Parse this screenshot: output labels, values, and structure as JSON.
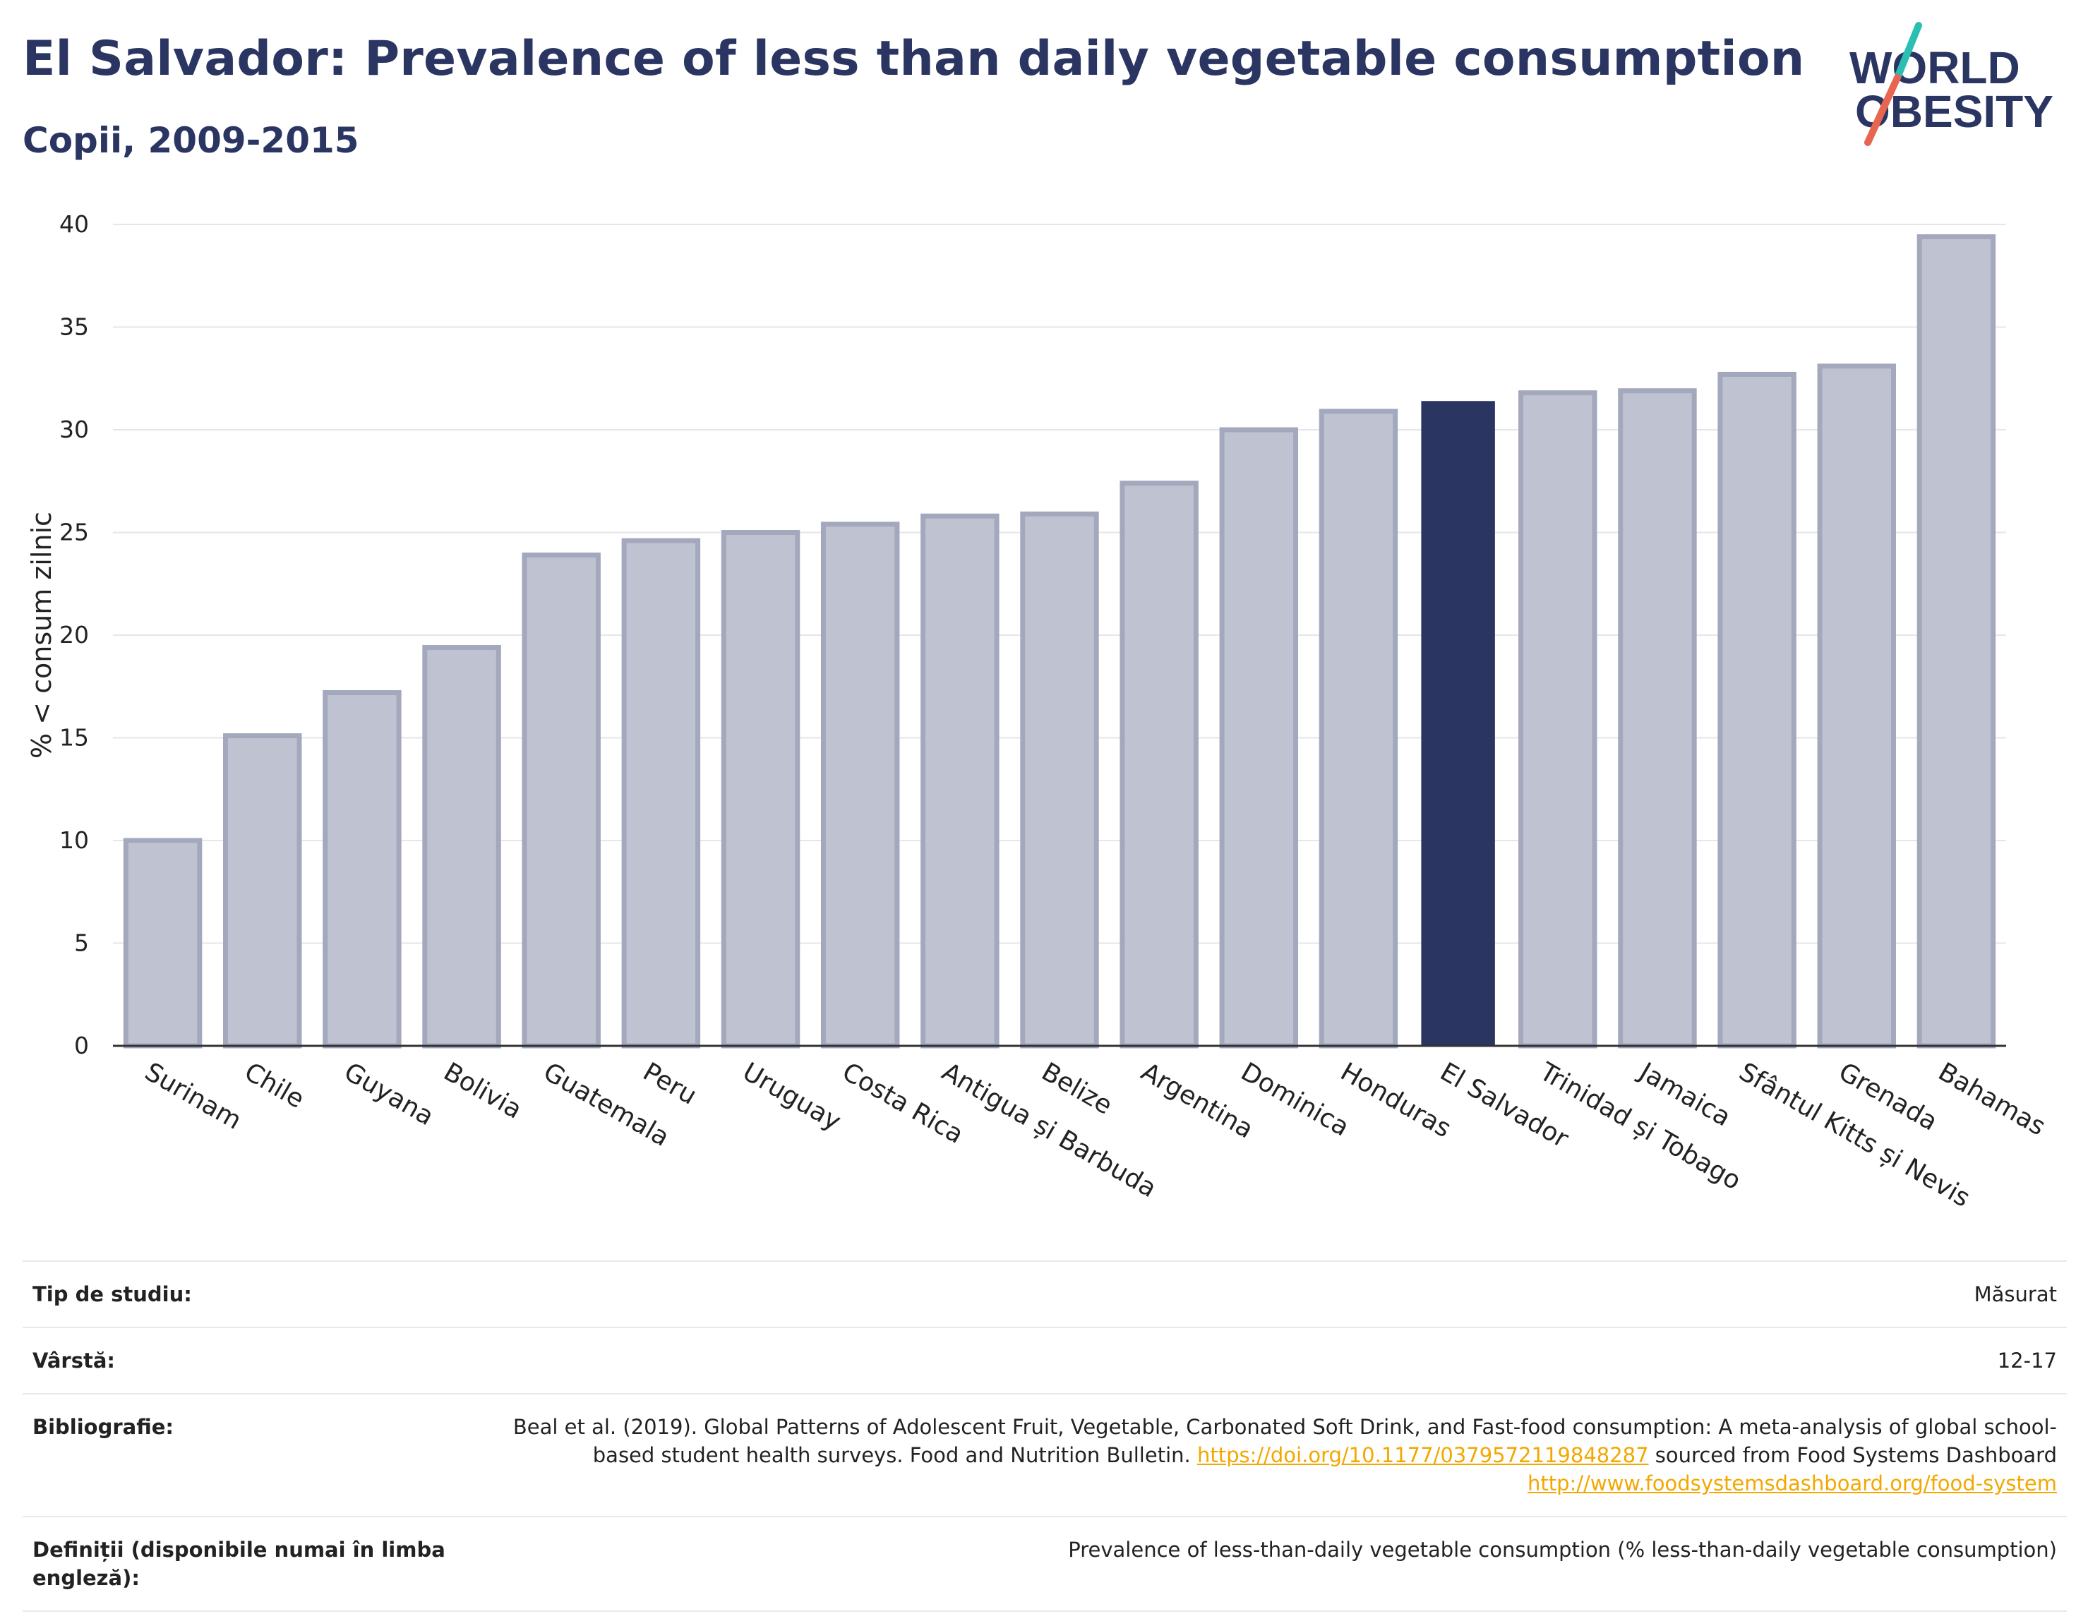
{
  "header": {
    "title": "El Salvador: Prevalence of less than daily vegetable consumption",
    "subtitle": "Copii, 2009-2015"
  },
  "logo": {
    "line1": "WORLD",
    "line2": "OBESITY",
    "colors": {
      "text": "#2a3562",
      "slash_teal": "#2bbfb3",
      "slash_red": "#e8664f"
    }
  },
  "colors": {
    "highlight": "#2a3562",
    "bar": "#bfc3d1",
    "bar_border": "#a3a8bd",
    "link": "#f2a800"
  },
  "chart_data": {
    "type": "bar",
    "ylabel": "% < consum zilnic",
    "ylim": [
      0,
      40
    ],
    "yticks": [
      0,
      5,
      10,
      15,
      20,
      25,
      30,
      35,
      40
    ],
    "grid": true,
    "highlight": "El Salvador",
    "categories": [
      "Surinam",
      "Chile",
      "Guyana",
      "Bolivia",
      "Guatemala",
      "Peru",
      "Uruguay",
      "Costa Rica",
      "Antigua și Barbuda",
      "Belize",
      "Argentina",
      "Dominica",
      "Honduras",
      "El Salvador",
      "Trinidad și Tobago",
      "Jamaica",
      "Sfântul Kitts și Nevis",
      "Grenada",
      "Bahamas"
    ],
    "values": [
      10.0,
      15.1,
      17.2,
      19.4,
      23.9,
      24.6,
      25.0,
      25.4,
      25.8,
      25.9,
      27.4,
      30.0,
      30.9,
      31.4,
      31.8,
      31.9,
      32.7,
      33.1,
      39.4
    ]
  },
  "table": {
    "study_type_label": "Tip de studiu:",
    "study_type_value": "Măsurat",
    "age_label": "Vârstă:",
    "age_value": "12-17",
    "bibliography_label": "Bibliografie:",
    "bibliography_text_1": "Beal et al. (2019). Global Patterns of Adolescent Fruit, Vegetable, Carbonated Soft Drink, and Fast-food consumption: A meta-analysis of global school-based student health surveys. Food and Nutrition Bulletin.",
    "bibliography_link_1": "https://doi.org/10.1177/0379572119848287",
    "bibliography_text_2": "sourced from Food Systems Dashboard",
    "bibliography_link_2": "http://www.foodsystemsdashboard.org/food-system",
    "definitions_label": "Definiții (disponibile numai în limba engleză):",
    "definitions_value": "Prevalence of less-than-daily vegetable consumption (% less-than-daily vegetable consumption)"
  }
}
